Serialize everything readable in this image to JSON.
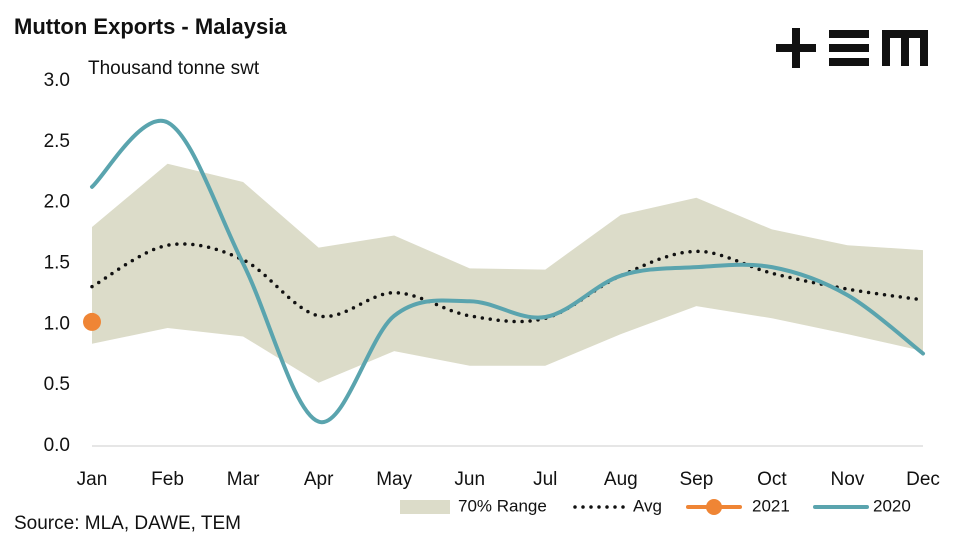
{
  "chart_data": {
    "type": "line",
    "title": "Mutton Exports - Malaysia",
    "ylabel": "Thousand tonne swt",
    "source": "Source: MLA, DAWE, TEM",
    "categories": [
      "Jan",
      "Feb",
      "Mar",
      "Apr",
      "May",
      "Jun",
      "Jul",
      "Aug",
      "Sep",
      "Oct",
      "Nov",
      "Dec"
    ],
    "ylim": [
      0,
      3
    ],
    "yticks": [
      {
        "value": 0,
        "label": "0.0"
      },
      0.5,
      {
        "value": 1,
        "label": "1.0"
      },
      1.5,
      {
        "value": 2,
        "label": "2.0"
      },
      2.5,
      {
        "value": 3,
        "label": "3.0"
      }
    ],
    "grid": false,
    "legend": "bottom",
    "series": [
      {
        "name": "70% Range",
        "color": "#dcdcc9",
        "kind": "range",
        "upper": [
          1.8,
          2.32,
          2.17,
          1.63,
          1.73,
          1.46,
          1.45,
          1.9,
          2.04,
          1.78,
          1.65,
          1.61
        ],
        "lower": [
          0.84,
          0.97,
          0.9,
          0.52,
          0.78,
          0.66,
          0.66,
          0.92,
          1.15,
          1.05,
          0.92,
          0.78
        ]
      },
      {
        "name": "Avg",
        "color": "#111111",
        "kind": "dotted",
        "values": [
          1.31,
          1.65,
          1.53,
          1.07,
          1.26,
          1.07,
          1.05,
          1.4,
          1.6,
          1.42,
          1.29,
          1.2
        ]
      },
      {
        "name": "2021",
        "color": "#ef8535",
        "kind": "marker",
        "values": [
          1.02,
          null,
          null,
          null,
          null,
          null,
          null,
          null,
          null,
          null,
          null,
          null
        ]
      },
      {
        "name": "2020",
        "color": "#5aa4ae",
        "kind": "solid",
        "values": [
          2.13,
          2.66,
          1.5,
          0.2,
          1.07,
          1.19,
          1.06,
          1.4,
          1.47,
          1.47,
          1.24,
          0.76
        ]
      }
    ]
  }
}
